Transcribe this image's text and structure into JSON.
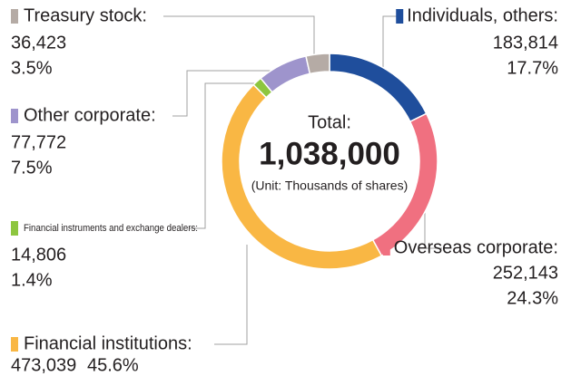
{
  "chart_data": {
    "type": "donut",
    "categories": [
      "Individuals, others:",
      "Overseas corporate:",
      "Financial institutions:",
      "Financial instruments and exchange dealers:",
      "Other corporate:",
      "Treasury stock:"
    ],
    "values": [
      183814,
      252143,
      473039,
      14806,
      77772,
      36423
    ],
    "value_labels": [
      "183,814",
      "252,143",
      "473,039",
      "14,806",
      "77,772",
      "36,423"
    ],
    "percent_labels": [
      "17.7%",
      "24.3%",
      "45.6%",
      "1.4%",
      "7.5%",
      "3.5%"
    ],
    "colors": [
      "#1f4e9c",
      "#f07080",
      "#f9b744",
      "#8dc63f",
      "#9e94cc",
      "#b5aba5"
    ],
    "center_title": "Total:",
    "center_total": "1,038,000",
    "center_unit": "(Unit: Thousands of shares)"
  }
}
